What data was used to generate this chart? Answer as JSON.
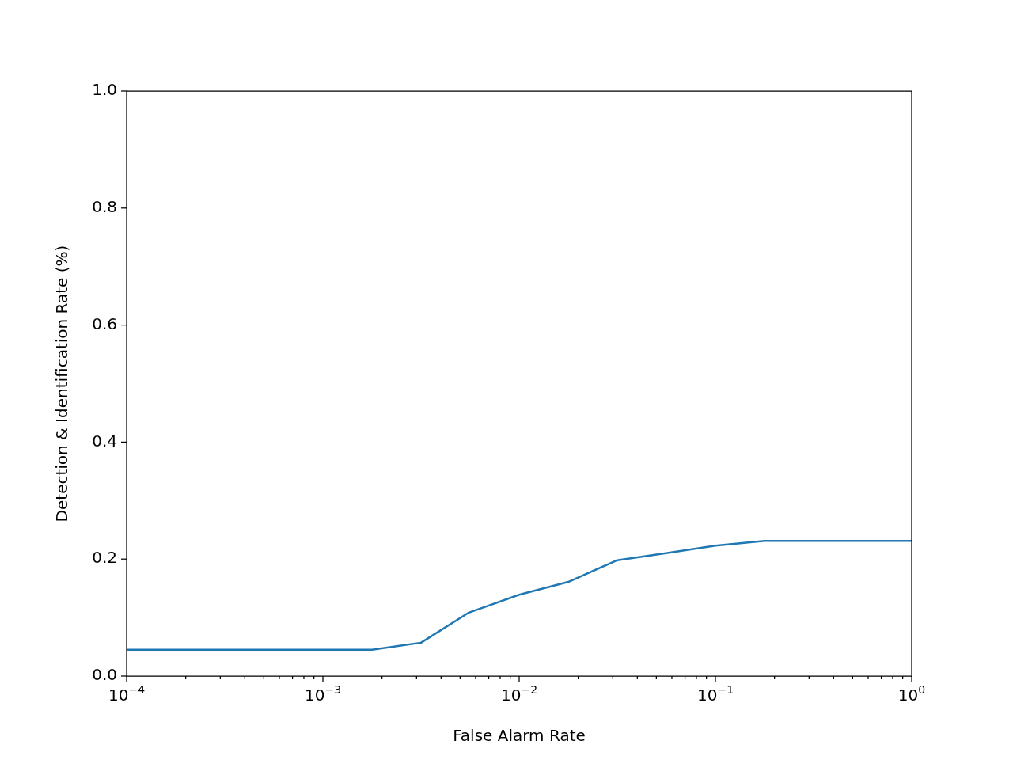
{
  "chart_data": {
    "type": "line",
    "xlabel": "False Alarm Rate",
    "ylabel": "Detection & Identification Rate (%)",
    "log": "x",
    "x": [
      0.0001,
      0.00178,
      0.00316,
      0.0055,
      0.01,
      0.0178,
      0.0316,
      0.056,
      0.1,
      0.178,
      1
    ],
    "series": [
      {
        "color": "#1f77b4",
        "values": [
          0.045,
          0.045,
          0.057,
          0.108,
          0.139,
          0.161,
          0.198,
          0.21,
          0.223,
          0.231,
          0.231
        ]
      }
    ],
    "xlim": [
      0.0001,
      1
    ],
    "ylim": [
      0,
      1
    ],
    "xticks": [
      {
        "value": 0.0001,
        "label": "10$^{−4}$"
      },
      {
        "value": 0.0002,
        "label": null
      },
      {
        "value": 0.0003,
        "label": null
      },
      {
        "value": 0.0004,
        "label": null
      },
      {
        "value": 0.0005,
        "label": null
      },
      {
        "value": 0.0006,
        "label": null
      },
      {
        "value": 0.0007,
        "label": null
      },
      {
        "value": 0.0008,
        "label": null
      },
      {
        "value": 0.0009,
        "label": null
      },
      {
        "value": 0.001,
        "label": "10$^{−3}$"
      },
      {
        "value": 0.002,
        "label": null
      },
      {
        "value": 0.003,
        "label": null
      },
      {
        "value": 0.004,
        "label": null
      },
      {
        "value": 0.005,
        "label": null
      },
      {
        "value": 0.006,
        "label": null
      },
      {
        "value": 0.007,
        "label": null
      },
      {
        "value": 0.008,
        "label": null
      },
      {
        "value": 0.009,
        "label": null
      },
      {
        "value": 0.01,
        "label": "10$^{−2}$"
      },
      {
        "value": 0.02,
        "label": null
      },
      {
        "value": 0.03,
        "label": null
      },
      {
        "value": 0.04,
        "label": null
      },
      {
        "value": 0.05,
        "label": null
      },
      {
        "value": 0.06,
        "label": null
      },
      {
        "value": 0.07,
        "label": null
      },
      {
        "value": 0.08,
        "label": null
      },
      {
        "value": 0.09,
        "label": null
      },
      {
        "value": 0.1,
        "label": "10$^{−1}$"
      },
      {
        "value": 0.2,
        "label": null
      },
      {
        "value": 0.3,
        "label": null
      },
      {
        "value": 0.4,
        "label": null
      },
      {
        "value": 0.5,
        "label": null
      },
      {
        "value": 0.6,
        "label": null
      },
      {
        "value": 0.7,
        "label": null
      },
      {
        "value": 0.8,
        "label": null
      },
      {
        "value": 0.9,
        "label": null
      },
      {
        "value": 1,
        "label": "10$^{0}$"
      }
    ],
    "yticks": [
      {
        "value": 0,
        "label": "0.0"
      },
      0.2,
      0.4,
      0.6,
      0.8,
      {
        "value": 1,
        "label": "1.0"
      }
    ]
  }
}
